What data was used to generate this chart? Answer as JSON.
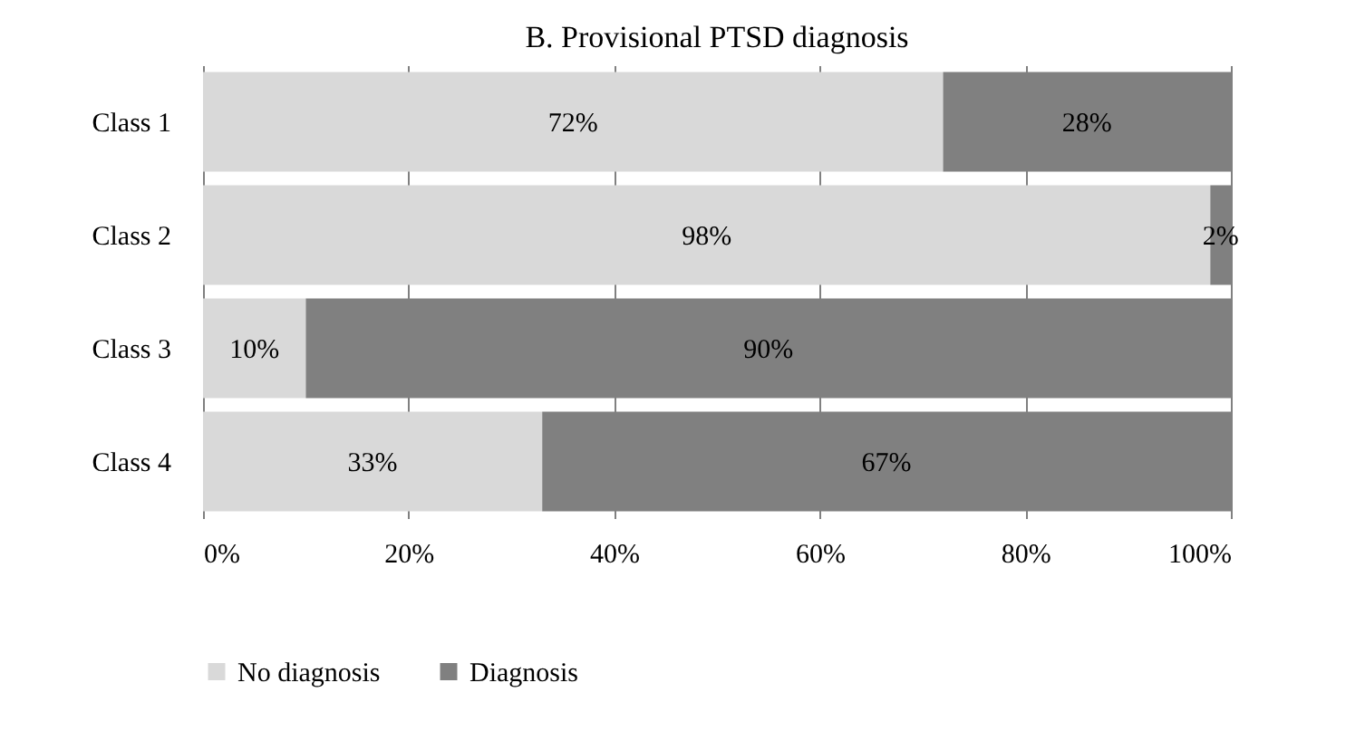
{
  "chart_data": {
    "type": "bar",
    "orientation": "horizontal",
    "stacked": true,
    "title": "B. Provisional  PTSD diagnosis",
    "categories": [
      "Class 1",
      "Class 2",
      "Class 3",
      "Class 4"
    ],
    "series": [
      {
        "name": "No diagnosis",
        "color": "#d9d9d9",
        "values": [
          72,
          98,
          10,
          33
        ],
        "value_labels": [
          "72%",
          "98%",
          "10%",
          "33%"
        ]
      },
      {
        "name": "Diagnosis",
        "color": "#808080",
        "values": [
          28,
          2,
          90,
          67
        ],
        "value_labels": [
          "28%",
          "2%",
          "90%",
          "67%"
        ]
      }
    ],
    "xlim": [
      0,
      100
    ],
    "xticks": [
      {
        "value": 0,
        "label": "0%"
      },
      {
        "value": 20,
        "label": "20%"
      },
      {
        "value": 40,
        "label": "40%"
      },
      {
        "value": 60,
        "label": "60%"
      },
      {
        "value": 80,
        "label": "80%"
      },
      {
        "value": 100,
        "label": "100%"
      }
    ],
    "grid": "x",
    "legend": "bottom"
  }
}
